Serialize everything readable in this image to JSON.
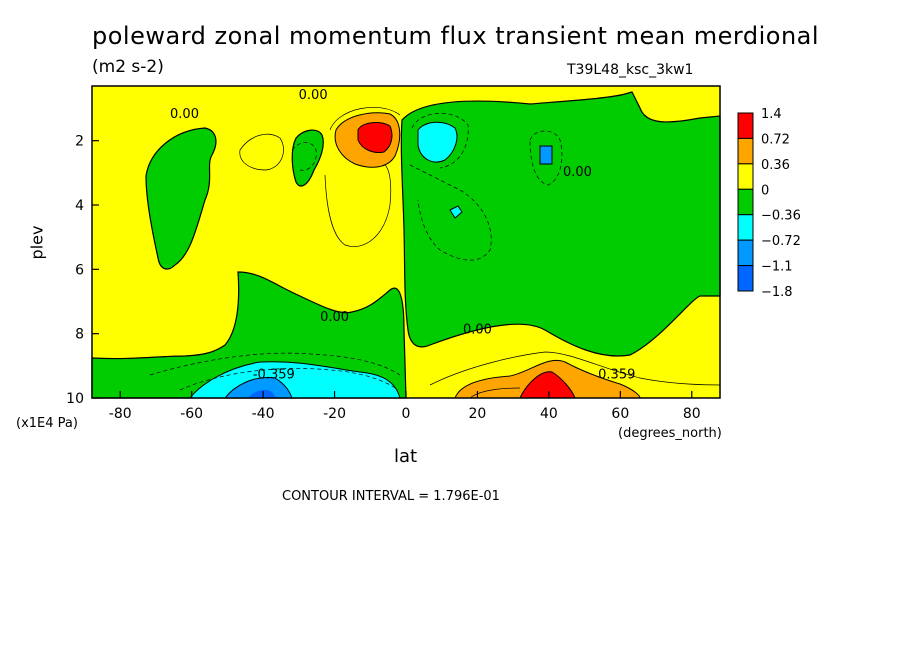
{
  "chart_data": {
    "type": "heatmap",
    "title": "poleward zonal momentum flux transient mean merdional",
    "units": "(m2 s-2)",
    "run_label": "T39L48_ksc_3kw1",
    "xlabel": "lat",
    "xlabel_units": "(degrees_north)",
    "ylabel": "plev",
    "ylabel_units": "(x1E4 Pa)",
    "x_ticks": [
      "-80",
      "-60",
      "-40",
      "-20",
      "0",
      "20",
      "40",
      "60",
      "80"
    ],
    "x_tick_values": [
      -80,
      -60,
      -40,
      -20,
      0,
      20,
      40,
      60,
      80
    ],
    "y_ticks": [
      "2",
      "4",
      "6",
      "8",
      "10"
    ],
    "y_tick_values": [
      2,
      4,
      6,
      8,
      10
    ],
    "xlim": [
      -87.9,
      87.9
    ],
    "ylim": [
      10,
      0.3
    ],
    "grid": false,
    "contour_interval_text": "CONTOUR INTERVAL = 1.796E-01",
    "colorbar": {
      "labels": [
        "1.4",
        "0.72",
        "0.36",
        "0",
        "−0.36",
        "−0.72",
        "−1.1",
        "−1.8"
      ],
      "colors": [
        "#ff0000",
        "#ffa500",
        "#ffff00",
        "#00cc00",
        "#00ffff",
        "#0099ff",
        "#0066ff"
      ]
    },
    "contour_labels": [
      {
        "text": "0.00",
        "x": -62,
        "y": 1.3
      },
      {
        "text": "0.00",
        "x": -26,
        "y": 0.7
      },
      {
        "text": "0.00",
        "x": 48,
        "y": 3.1
      },
      {
        "text": "0.00",
        "x": -20,
        "y": 7.6
      },
      {
        "text": "0.00",
        "x": 20,
        "y": 8.0
      },
      {
        "text": "-0.359",
        "x": -37,
        "y": 9.4
      },
      {
        "text": "0.359",
        "x": 59,
        "y": 9.4
      }
    ],
    "regions": [
      {
        "level": "0 to 0.36",
        "color": "#ffff00",
        "description": "background positive field"
      },
      {
        "level": "-0.36 to 0",
        "color": "#00cc00",
        "x": [
          -75,
          -55
        ],
        "y": [
          1.3,
          6.1
        ]
      },
      {
        "level": "-0.36 to 0",
        "color": "#00cc00",
        "x": [
          -30,
          -15
        ],
        "y": [
          1.5,
          3.0
        ]
      },
      {
        "level": "-0.36 to 0",
        "color": "#00cc00",
        "x": [
          3,
          88
        ],
        "y": [
          0.3,
          8.2
        ]
      },
      {
        "level": "-0.36 to 0",
        "color": "#00cc00",
        "x": [
          -88,
          -2
        ],
        "y": [
          7.0,
          10
        ]
      },
      {
        "level": "-0.72 to -0.36",
        "color": "#00ffff",
        "x": [
          -60,
          -2
        ],
        "y": [
          9.0,
          10
        ]
      },
      {
        "level": "-0.72 to -0.36",
        "color": "#00ffff",
        "x": [
          3,
          14
        ],
        "y": [
          1.2,
          2.4
        ]
      },
      {
        "level": "-1.1 to -0.72",
        "color": "#0099ff",
        "x": [
          -50,
          -30
        ],
        "y": [
          9.4,
          10
        ]
      },
      {
        "level": "-1.1 to -0.72",
        "color": "#0099ff",
        "x": [
          37,
          41
        ],
        "y": [
          2.0,
          2.6
        ]
      },
      {
        "level": "0.36 to 0.72",
        "color": "#ffa500",
        "x": [
          -15,
          -3
        ],
        "y": [
          1.0,
          2.5
        ]
      },
      {
        "level": "0.36 to 0.72",
        "color": "#ffa500",
        "x": [
          13,
          70
        ],
        "y": [
          9.4,
          10
        ]
      },
      {
        "level": "0.72 to 1.4",
        "color": "#ff0000",
        "x": [
          -12,
          -4
        ],
        "y": [
          1.3,
          2.1
        ]
      },
      {
        "level": "0.72 to 1.4",
        "color": "#ff0000",
        "x": [
          35,
          47
        ],
        "y": [
          9.2,
          10
        ]
      }
    ]
  }
}
